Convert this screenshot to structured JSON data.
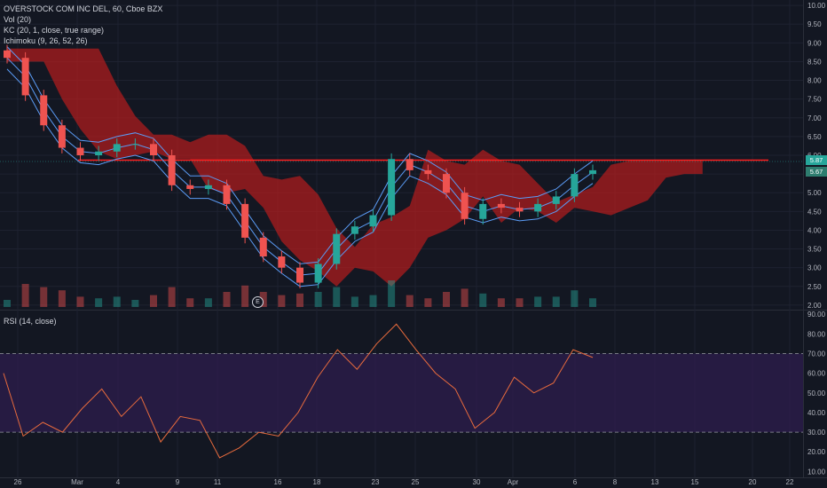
{
  "legend": {
    "title": "OVERSTOCK COM INC DEL, 60, Cboe BZX",
    "vol": "Vol (20)",
    "kc": "KC (20, 1, close, true range)",
    "ichimoku": "Ichimoku (9, 26, 52, 26)",
    "rsi": "RSI (14, close)"
  },
  "price_tags": {
    "last": "5.87",
    "other": "5.67"
  },
  "earnings_label": "E",
  "colors": {
    "background": "#131722",
    "grid": "#1e2230",
    "up": "#26a69a",
    "down": "#ef5350",
    "kc": "#5b9cf6",
    "cloud_bear": "#b71c1c",
    "cloud_bull": "#1b5e20",
    "hline": "#ff1f1f",
    "rsi_line": "#e86b3d",
    "rsi_band": "#2d1d4e",
    "price_tag": "#26a69a"
  },
  "chart_data": [
    {
      "type": "candlestick",
      "title": "OVERSTOCK COM INC DEL, 60, Cboe BZX",
      "y_axis_ticks": [
        "10.00",
        "9.50",
        "9.00",
        "8.50",
        "8.00",
        "7.50",
        "7.00",
        "6.50",
        "6.00",
        "5.50",
        "5.00",
        "4.50",
        "4.00",
        "3.50",
        "3.00",
        "2.50",
        "2.00"
      ],
      "ylim": [
        1.95,
        10.05
      ],
      "x_axis_ticks": [
        "26",
        "Mar",
        "4",
        "9",
        "11",
        "16",
        "18",
        "23",
        "25",
        "30",
        "Apr",
        "6",
        "8",
        "13",
        "15",
        "20",
        "22"
      ],
      "horizontal_line": 5.87,
      "close_series": [
        {
          "date": "Feb 26",
          "close": 8.6
        },
        {
          "date": "Feb 27",
          "close": 7.6
        },
        {
          "date": "Feb 28",
          "close": 6.8
        },
        {
          "date": "Mar 2",
          "close": 6.2
        },
        {
          "date": "Mar 3",
          "close": 6.0
        },
        {
          "date": "Mar 4",
          "close": 6.1
        },
        {
          "date": "Mar 5",
          "close": 6.3
        },
        {
          "date": "Mar 6",
          "close": 6.3
        },
        {
          "date": "Mar 6b",
          "close": 6.0
        },
        {
          "date": "Mar 9",
          "close": 5.2
        },
        {
          "date": "Mar 10",
          "close": 5.1
        },
        {
          "date": "Mar 11",
          "close": 5.2
        },
        {
          "date": "Mar 12",
          "close": 4.7
        },
        {
          "date": "Mar 13",
          "close": 3.8
        },
        {
          "date": "Mar 16",
          "close": 3.3
        },
        {
          "date": "Mar 17",
          "close": 3.0
        },
        {
          "date": "Mar 18",
          "close": 2.6
        },
        {
          "date": "Mar 19",
          "close": 3.1
        },
        {
          "date": "Mar 20",
          "close": 3.9
        },
        {
          "date": "Mar 20b",
          "close": 4.1
        },
        {
          "date": "Mar 23",
          "close": 4.4
        },
        {
          "date": "Mar 24",
          "close": 5.9
        },
        {
          "date": "Mar 25",
          "close": 5.6
        },
        {
          "date": "Mar 26",
          "close": 5.5
        },
        {
          "date": "Mar 27",
          "close": 5.0
        },
        {
          "date": "Mar 30",
          "close": 4.3
        },
        {
          "date": "Mar 31",
          "close": 4.7
        },
        {
          "date": "Apr 1",
          "close": 4.6
        },
        {
          "date": "Apr 2",
          "close": 4.5
        },
        {
          "date": "Apr 3",
          "close": 4.7
        },
        {
          "date": "Apr 6",
          "close": 4.9
        },
        {
          "date": "Apr 7",
          "close": 5.5
        },
        {
          "date": "Apr 7b",
          "close": 5.6
        }
      ]
    },
    {
      "type": "line",
      "title": "RSI (14, close)",
      "y_axis_ticks": [
        "90.00",
        "80.00",
        "70.00",
        "60.00",
        "50.00",
        "40.00",
        "30.00",
        "20.00",
        "10.00"
      ],
      "ylim": [
        7,
        91
      ],
      "bands": [
        30,
        70
      ],
      "values": [
        {
          "date": "Feb 26",
          "rsi": 60
        },
        {
          "date": "Feb 27",
          "rsi": 28
        },
        {
          "date": "Feb 28",
          "rsi": 35
        },
        {
          "date": "Mar 2",
          "rsi": 30
        },
        {
          "date": "Mar 3",
          "rsi": 42
        },
        {
          "date": "Mar 4",
          "rsi": 52
        },
        {
          "date": "Mar 5",
          "rsi": 38
        },
        {
          "date": "Mar 6",
          "rsi": 48
        },
        {
          "date": "Mar 9",
          "rsi": 25
        },
        {
          "date": "Mar 10",
          "rsi": 38
        },
        {
          "date": "Mar 11",
          "rsi": 36
        },
        {
          "date": "Mar 12",
          "rsi": 17
        },
        {
          "date": "Mar 13",
          "rsi": 22
        },
        {
          "date": "Mar 16",
          "rsi": 30
        },
        {
          "date": "Mar 17",
          "rsi": 28
        },
        {
          "date": "Mar 18",
          "rsi": 40
        },
        {
          "date": "Mar 19",
          "rsi": 58
        },
        {
          "date": "Mar 20",
          "rsi": 72
        },
        {
          "date": "Mar 21",
          "rsi": 62
        },
        {
          "date": "Mar 23",
          "rsi": 75
        },
        {
          "date": "Mar 24",
          "rsi": 85
        },
        {
          "date": "Mar 25",
          "rsi": 72
        },
        {
          "date": "Mar 26",
          "rsi": 60
        },
        {
          "date": "Mar 27",
          "rsi": 52
        },
        {
          "date": "Mar 30",
          "rsi": 32
        },
        {
          "date": "Mar 31",
          "rsi": 40
        },
        {
          "date": "Apr 1",
          "rsi": 58
        },
        {
          "date": "Apr 2",
          "rsi": 50
        },
        {
          "date": "Apr 3",
          "rsi": 55
        },
        {
          "date": "Apr 6",
          "rsi": 72
        },
        {
          "date": "Apr 7",
          "rsi": 68
        }
      ]
    }
  ]
}
